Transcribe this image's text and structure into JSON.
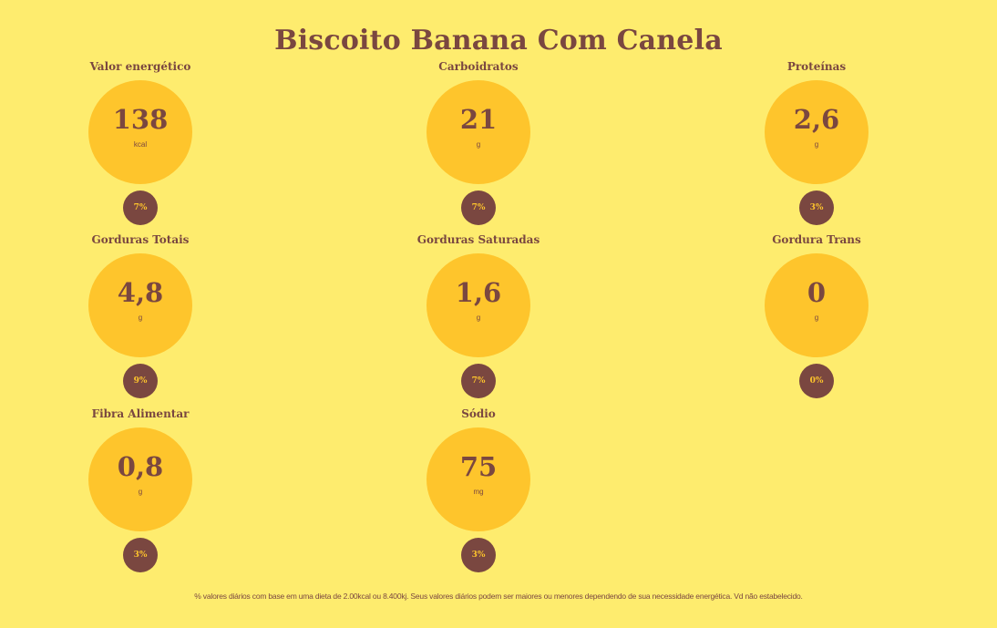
{
  "title": "Biscoito Banana Com Canela",
  "nutrients": [
    {
      "label": "Valor energético",
      "value": "138",
      "unit": "kcal",
      "daily": "7%"
    },
    {
      "label": "Carboidratos",
      "value": "21",
      "unit": "g",
      "daily": "7%"
    },
    {
      "label": "Proteínas",
      "value": "2,6",
      "unit": "g",
      "daily": "3%"
    },
    {
      "label": "Gorduras Totais",
      "value": "4,8",
      "unit": "g",
      "daily": "9%"
    },
    {
      "label": "Gorduras Saturadas",
      "value": "1,6",
      "unit": "g",
      "daily": "7%"
    },
    {
      "label": "Gordura Trans",
      "value": "0",
      "unit": "g",
      "daily": "0%"
    },
    {
      "label": "Fibra Alimentar",
      "value": "0,8",
      "unit": "g",
      "daily": "3%"
    },
    {
      "label": "Sódio",
      "value": "75",
      "unit": "mg",
      "daily": "3%"
    }
  ],
  "footnote": "% valores diários com base em uma dieta de 2.00kcal ou 8.400kj. Seus valores diários podem ser maiores ou menores dependendo de sua necessidade energética. Vd não estabelecido.",
  "colors": {
    "background": "#FEEC6E",
    "circle": "#FEC52C",
    "text": "#7A4740",
    "badge": "#7A4740"
  }
}
